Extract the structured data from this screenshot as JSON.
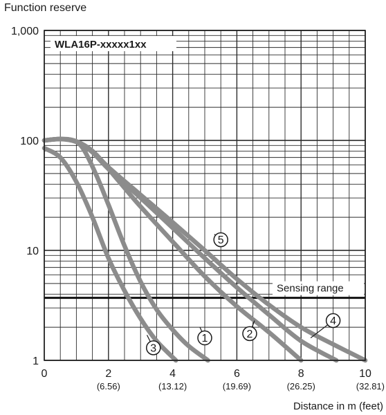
{
  "chart_data": {
    "type": "line",
    "title": "",
    "ylabel": "Function reserve",
    "xlabel": "Distance in m (feet)",
    "model_label": "WLA16P-xxxxx1xx",
    "yscale": "log",
    "ylim": [
      1,
      1000
    ],
    "xlim": [
      0,
      10
    ],
    "y_ticks": [
      1,
      10,
      100,
      1000
    ],
    "y_tick_labels": [
      "1",
      "10",
      "100",
      "1,000"
    ],
    "x_ticks": [
      0,
      2,
      4,
      6,
      8,
      10
    ],
    "x_tick_labels": [
      "0",
      "2",
      "4",
      "6",
      "8",
      "10"
    ],
    "x_tick_sublabels": [
      "",
      "(6.56)",
      "(13.12)",
      "(19.69)",
      "(26.25)",
      "(32.81)"
    ],
    "grid": true,
    "threshold": {
      "label": "Sensing range",
      "y": 3.7
    },
    "series": [
      {
        "name": "1",
        "marker_at": [
          5.0,
          1.6
        ],
        "leader_to": [
          4.85,
          2.0
        ],
        "points": [
          [
            0.0,
            100
          ],
          [
            0.5,
            103
          ],
          [
            0.9,
            100
          ],
          [
            1.2,
            85
          ],
          [
            1.6,
            50
          ],
          [
            2.0,
            26
          ],
          [
            2.5,
            11
          ],
          [
            3.0,
            5.2
          ],
          [
            3.5,
            2.9
          ],
          [
            4.0,
            1.9
          ],
          [
            4.5,
            1.35
          ],
          [
            5.1,
            1.0
          ]
        ]
      },
      {
        "name": "2",
        "marker_at": [
          6.4,
          1.75
        ],
        "leader_to": [
          6.55,
          2.3
        ],
        "points": [
          [
            0.0,
            100
          ],
          [
            0.5,
            103
          ],
          [
            1.0,
            98
          ],
          [
            1.5,
            80
          ],
          [
            2.0,
            55
          ],
          [
            2.5,
            37
          ],
          [
            3.0,
            25
          ],
          [
            4.0,
            12
          ],
          [
            5.0,
            5.8
          ],
          [
            6.0,
            3.1
          ],
          [
            7.0,
            1.8
          ],
          [
            8.0,
            1.0
          ]
        ]
      },
      {
        "name": "3",
        "marker_at": [
          3.4,
          1.3
        ],
        "leader_to": [
          3.2,
          1.7
        ],
        "points": [
          [
            0.0,
            85
          ],
          [
            0.5,
            70
          ],
          [
            1.0,
            42
          ],
          [
            1.5,
            20
          ],
          [
            2.0,
            8.5
          ],
          [
            2.5,
            4.3
          ],
          [
            3.0,
            2.4
          ],
          [
            3.5,
            1.5
          ],
          [
            4.1,
            1.0
          ]
        ]
      },
      {
        "name": "4",
        "marker_at": [
          9.0,
          2.3
        ],
        "leader_to": [
          8.3,
          1.6
        ],
        "points": [
          [
            0.0,
            100
          ],
          [
            0.5,
            103
          ],
          [
            1.0,
            98
          ],
          [
            1.5,
            78
          ],
          [
            2.0,
            55
          ],
          [
            3.0,
            30
          ],
          [
            4.0,
            16
          ],
          [
            5.0,
            8.5
          ],
          [
            6.0,
            4.6
          ],
          [
            7.0,
            2.6
          ],
          [
            8.0,
            1.5
          ],
          [
            9.1,
            1.0
          ]
        ]
      },
      {
        "name": "5",
        "marker_at": [
          5.5,
          12.5
        ],
        "leader_to": [
          5.3,
          14
        ],
        "points": [
          [
            0.0,
            100
          ],
          [
            0.5,
            103
          ],
          [
            1.0,
            97
          ],
          [
            1.5,
            80
          ],
          [
            2.0,
            57
          ],
          [
            3.0,
            32
          ],
          [
            4.0,
            18
          ],
          [
            5.0,
            10
          ],
          [
            6.0,
            5.5
          ],
          [
            7.0,
            3.2
          ],
          [
            8.0,
            2.0
          ],
          [
            9.0,
            1.4
          ],
          [
            10.0,
            1.0
          ]
        ]
      }
    ]
  }
}
